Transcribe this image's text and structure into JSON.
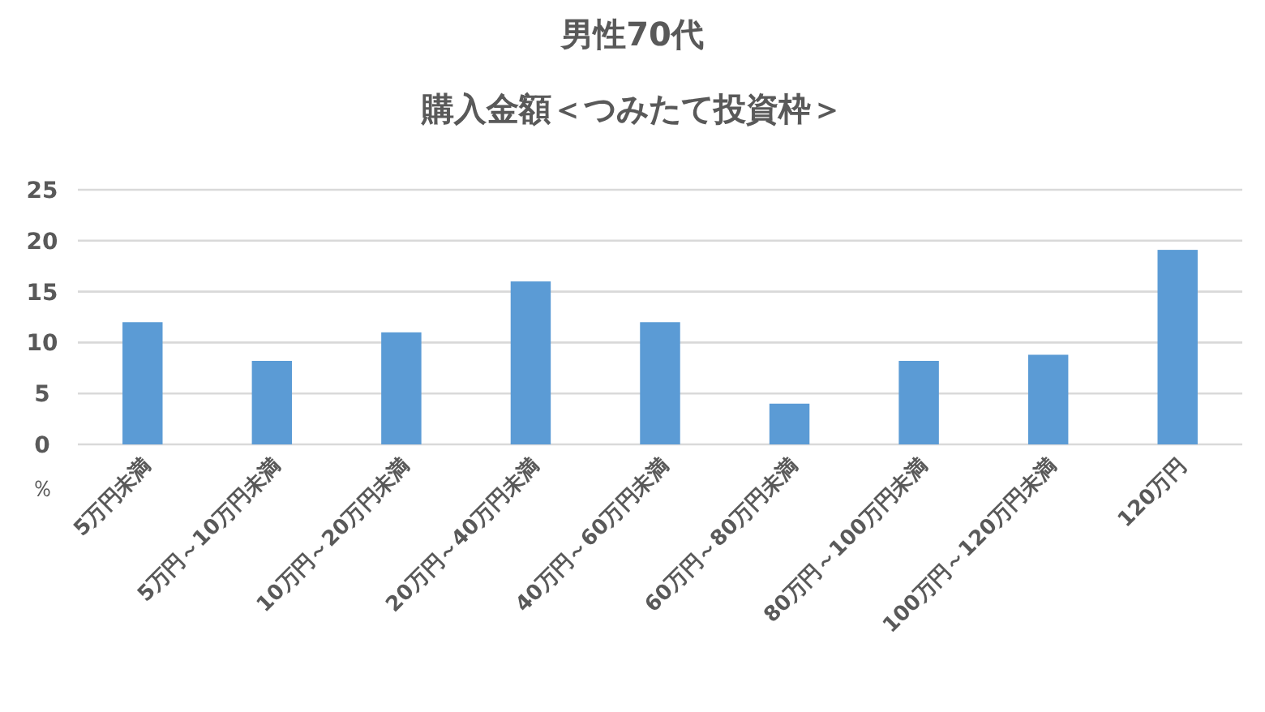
{
  "chart_data": {
    "type": "bar",
    "title": "男性70代",
    "subtitle": "購入金額＜つみたて投資枠＞",
    "ylabel": "％",
    "categories": [
      "5万円未満",
      "5万円～10万円未満",
      "10万円～20万円未満",
      "20万円～40万円未満",
      "40万円～60万円未満",
      "60万円～80万円未満",
      "80万円～100万円未満",
      "100万円～120万円未満",
      "120万円"
    ],
    "values": [
      12,
      8.2,
      11,
      16,
      12,
      4,
      8.2,
      8.8,
      19.1
    ],
    "color": "#5b9bd5",
    "ylim": [
      0,
      25
    ],
    "yticks": [
      0,
      5,
      10,
      15,
      20,
      25
    ],
    "grid": "y"
  }
}
